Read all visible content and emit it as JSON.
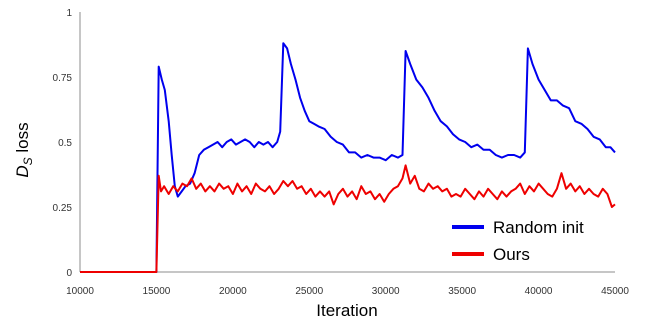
{
  "chart_data": {
    "type": "line",
    "title": "",
    "xlabel": "Iteration",
    "ylabel_main": "D",
    "ylabel_sub": "S",
    "ylabel_suffix": " loss",
    "xlim": [
      10000,
      45000
    ],
    "ylim": [
      0,
      1
    ],
    "x_ticks": [
      10000,
      15000,
      20000,
      25000,
      30000,
      35000,
      40000,
      45000
    ],
    "x_tick_labels": [
      "10000",
      "15000",
      "20000",
      "25000",
      "30000",
      "35000",
      "40000",
      "45000"
    ],
    "y_ticks": [
      0,
      0.25,
      0.5,
      0.75,
      1
    ],
    "y_tick_labels": [
      "0",
      "0.25",
      "0.5",
      "0.75",
      "1"
    ],
    "grid": false,
    "legend_position": "bottom-right",
    "series": [
      {
        "name": "Random init",
        "color": "#0000ee",
        "points": [
          [
            10000,
            0
          ],
          [
            15000,
            0
          ],
          [
            15150,
            0.79
          ],
          [
            15350,
            0.74
          ],
          [
            15550,
            0.7
          ],
          [
            15800,
            0.58
          ],
          [
            16000,
            0.45
          ],
          [
            16200,
            0.33
          ],
          [
            16400,
            0.29
          ],
          [
            16650,
            0.31
          ],
          [
            16900,
            0.33
          ],
          [
            17200,
            0.34
          ],
          [
            17500,
            0.38
          ],
          [
            17800,
            0.45
          ],
          [
            18100,
            0.47
          ],
          [
            18400,
            0.48
          ],
          [
            18700,
            0.49
          ],
          [
            19000,
            0.5
          ],
          [
            19300,
            0.48
          ],
          [
            19600,
            0.5
          ],
          [
            19900,
            0.51
          ],
          [
            20200,
            0.49
          ],
          [
            20500,
            0.5
          ],
          [
            20800,
            0.51
          ],
          [
            21100,
            0.5
          ],
          [
            21400,
            0.48
          ],
          [
            21700,
            0.5
          ],
          [
            22000,
            0.49
          ],
          [
            22300,
            0.5
          ],
          [
            22600,
            0.48
          ],
          [
            22900,
            0.5
          ],
          [
            23100,
            0.54
          ],
          [
            23300,
            0.88
          ],
          [
            23550,
            0.86
          ],
          [
            23800,
            0.8
          ],
          [
            24100,
            0.74
          ],
          [
            24400,
            0.67
          ],
          [
            24700,
            0.62
          ],
          [
            25000,
            0.58
          ],
          [
            25300,
            0.57
          ],
          [
            25600,
            0.56
          ],
          [
            26000,
            0.55
          ],
          [
            26400,
            0.52
          ],
          [
            26800,
            0.5
          ],
          [
            27200,
            0.49
          ],
          [
            27600,
            0.46
          ],
          [
            28000,
            0.46
          ],
          [
            28400,
            0.44
          ],
          [
            28800,
            0.45
          ],
          [
            29200,
            0.44
          ],
          [
            29600,
            0.44
          ],
          [
            30000,
            0.43
          ],
          [
            30400,
            0.45
          ],
          [
            30800,
            0.44
          ],
          [
            31100,
            0.45
          ],
          [
            31300,
            0.85
          ],
          [
            31600,
            0.8
          ],
          [
            32000,
            0.74
          ],
          [
            32400,
            0.71
          ],
          [
            32800,
            0.67
          ],
          [
            33200,
            0.62
          ],
          [
            33600,
            0.58
          ],
          [
            34000,
            0.56
          ],
          [
            34400,
            0.53
          ],
          [
            34800,
            0.51
          ],
          [
            35200,
            0.5
          ],
          [
            35600,
            0.48
          ],
          [
            36000,
            0.49
          ],
          [
            36400,
            0.47
          ],
          [
            36800,
            0.47
          ],
          [
            37200,
            0.45
          ],
          [
            37600,
            0.44
          ],
          [
            38000,
            0.45
          ],
          [
            38400,
            0.45
          ],
          [
            38800,
            0.44
          ],
          [
            39100,
            0.46
          ],
          [
            39300,
            0.86
          ],
          [
            39600,
            0.8
          ],
          [
            40000,
            0.74
          ],
          [
            40400,
            0.7
          ],
          [
            40800,
            0.66
          ],
          [
            41200,
            0.66
          ],
          [
            41600,
            0.64
          ],
          [
            42000,
            0.63
          ],
          [
            42400,
            0.58
          ],
          [
            42800,
            0.57
          ],
          [
            43200,
            0.55
          ],
          [
            43600,
            0.52
          ],
          [
            44000,
            0.51
          ],
          [
            44400,
            0.48
          ],
          [
            44700,
            0.48
          ],
          [
            45000,
            0.46
          ]
        ]
      },
      {
        "name": "Ours",
        "color": "#ee0000",
        "points": [
          [
            10000,
            0
          ],
          [
            15000,
            0
          ],
          [
            15150,
            0.37
          ],
          [
            15300,
            0.31
          ],
          [
            15500,
            0.33
          ],
          [
            15800,
            0.3
          ],
          [
            16100,
            0.33
          ],
          [
            16400,
            0.31
          ],
          [
            16700,
            0.34
          ],
          [
            17000,
            0.33
          ],
          [
            17300,
            0.36
          ],
          [
            17600,
            0.32
          ],
          [
            17900,
            0.34
          ],
          [
            18200,
            0.31
          ],
          [
            18500,
            0.33
          ],
          [
            18800,
            0.31
          ],
          [
            19100,
            0.34
          ],
          [
            19400,
            0.32
          ],
          [
            19700,
            0.33
          ],
          [
            20000,
            0.3
          ],
          [
            20300,
            0.34
          ],
          [
            20600,
            0.31
          ],
          [
            20900,
            0.33
          ],
          [
            21200,
            0.3
          ],
          [
            21500,
            0.34
          ],
          [
            21800,
            0.32
          ],
          [
            22100,
            0.31
          ],
          [
            22400,
            0.33
          ],
          [
            22700,
            0.3
          ],
          [
            23000,
            0.32
          ],
          [
            23300,
            0.35
          ],
          [
            23600,
            0.33
          ],
          [
            23900,
            0.35
          ],
          [
            24200,
            0.32
          ],
          [
            24500,
            0.33
          ],
          [
            24800,
            0.3
          ],
          [
            25100,
            0.32
          ],
          [
            25400,
            0.29
          ],
          [
            25700,
            0.31
          ],
          [
            26000,
            0.29
          ],
          [
            26300,
            0.31
          ],
          [
            26600,
            0.26
          ],
          [
            26900,
            0.3
          ],
          [
            27200,
            0.32
          ],
          [
            27500,
            0.29
          ],
          [
            27800,
            0.31
          ],
          [
            28100,
            0.28
          ],
          [
            28400,
            0.33
          ],
          [
            28700,
            0.3
          ],
          [
            29000,
            0.31
          ],
          [
            29300,
            0.28
          ],
          [
            29600,
            0.3
          ],
          [
            29900,
            0.27
          ],
          [
            30200,
            0.3
          ],
          [
            30500,
            0.32
          ],
          [
            30800,
            0.33
          ],
          [
            31100,
            0.36
          ],
          [
            31300,
            0.41
          ],
          [
            31600,
            0.34
          ],
          [
            31900,
            0.37
          ],
          [
            32200,
            0.32
          ],
          [
            32500,
            0.31
          ],
          [
            32800,
            0.34
          ],
          [
            33100,
            0.32
          ],
          [
            33400,
            0.33
          ],
          [
            33700,
            0.31
          ],
          [
            34000,
            0.32
          ],
          [
            34300,
            0.29
          ],
          [
            34600,
            0.3
          ],
          [
            34900,
            0.29
          ],
          [
            35200,
            0.32
          ],
          [
            35500,
            0.3
          ],
          [
            35800,
            0.28
          ],
          [
            36100,
            0.31
          ],
          [
            36400,
            0.29
          ],
          [
            36700,
            0.32
          ],
          [
            37000,
            0.3
          ],
          [
            37300,
            0.28
          ],
          [
            37600,
            0.31
          ],
          [
            37900,
            0.29
          ],
          [
            38200,
            0.31
          ],
          [
            38500,
            0.32
          ],
          [
            38800,
            0.34
          ],
          [
            39100,
            0.3
          ],
          [
            39400,
            0.33
          ],
          [
            39700,
            0.31
          ],
          [
            40000,
            0.34
          ],
          [
            40300,
            0.32
          ],
          [
            40600,
            0.3
          ],
          [
            40900,
            0.29
          ],
          [
            41200,
            0.32
          ],
          [
            41500,
            0.38
          ],
          [
            41800,
            0.32
          ],
          [
            42100,
            0.34
          ],
          [
            42400,
            0.31
          ],
          [
            42700,
            0.33
          ],
          [
            43000,
            0.3
          ],
          [
            43300,
            0.32
          ],
          [
            43600,
            0.3
          ],
          [
            43900,
            0.29
          ],
          [
            44200,
            0.32
          ],
          [
            44500,
            0.3
          ],
          [
            44800,
            0.25
          ],
          [
            45000,
            0.26
          ]
        ]
      }
    ]
  }
}
